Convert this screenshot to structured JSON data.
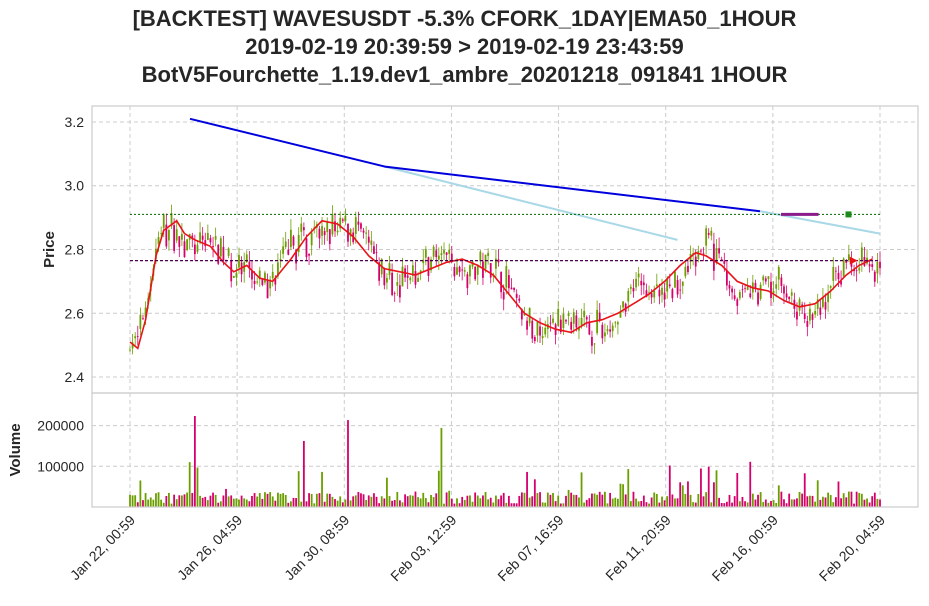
{
  "titles": {
    "line1": "[BACKTEST] WAVESUSDT -5.3% CFORK_1DAY|EMA50_1HOUR",
    "line2": "2019-02-19 20:39:59 > 2019-02-19 23:43:59",
    "line3": "BotV5Fourchette_1.19.dev1_ambre_20201218_091841 1HOUR"
  },
  "chart_data": {
    "type": "candlestick",
    "price_panel": {
      "ylabel": "Price",
      "ylim": [
        2.35,
        3.25
      ],
      "yticks": [
        "2.4",
        "2.6",
        "2.8",
        "3.0",
        "3.2"
      ],
      "ema_line": [
        [
          0,
          2.51
        ],
        [
          3,
          2.49
        ],
        [
          6,
          2.58
        ],
        [
          10,
          2.78
        ],
        [
          13,
          2.86
        ],
        [
          18,
          2.89
        ],
        [
          21,
          2.85
        ],
        [
          25,
          2.83
        ],
        [
          31,
          2.81
        ],
        [
          36,
          2.76
        ],
        [
          40,
          2.73
        ],
        [
          45,
          2.75
        ],
        [
          50,
          2.71
        ],
        [
          55,
          2.7
        ],
        [
          62,
          2.77
        ],
        [
          68,
          2.84
        ],
        [
          74,
          2.89
        ],
        [
          80,
          2.88
        ],
        [
          86,
          2.84
        ],
        [
          92,
          2.78
        ],
        [
          98,
          2.74
        ],
        [
          104,
          2.73
        ],
        [
          110,
          2.72
        ],
        [
          116,
          2.74
        ],
        [
          122,
          2.76
        ],
        [
          128,
          2.77
        ],
        [
          134,
          2.75
        ],
        [
          140,
          2.72
        ],
        [
          146,
          2.66
        ],
        [
          152,
          2.6
        ],
        [
          158,
          2.57
        ],
        [
          164,
          2.55
        ],
        [
          170,
          2.54
        ],
        [
          176,
          2.57
        ],
        [
          182,
          2.58
        ],
        [
          188,
          2.6
        ],
        [
          194,
          2.63
        ],
        [
          200,
          2.66
        ],
        [
          206,
          2.7
        ],
        [
          212,
          2.75
        ],
        [
          218,
          2.79
        ],
        [
          222,
          2.78
        ],
        [
          228,
          2.75
        ],
        [
          234,
          2.7
        ],
        [
          240,
          2.68
        ],
        [
          246,
          2.67
        ],
        [
          252,
          2.64
        ],
        [
          258,
          2.62
        ],
        [
          264,
          2.63
        ],
        [
          270,
          2.67
        ],
        [
          276,
          2.72
        ],
        [
          281,
          2.75
        ],
        [
          286,
          2.77
        ]
      ],
      "trend_upper": [
        [
          0.08,
          3.21
        ],
        [
          0.34,
          3.06
        ],
        [
          0.84,
          2.92
        ]
      ],
      "trend_lower": [
        [
          0.34,
          3.06
        ],
        [
          0.73,
          2.83
        ]
      ],
      "trend_lower2": [
        [
          0.84,
          2.92
        ],
        [
          1.0,
          2.85
        ]
      ],
      "hline_green": 2.91,
      "hline_purple": 2.765,
      "position_bar": {
        "from": 0.868,
        "to": 0.918,
        "price": 2.91
      }
    },
    "volume_panel": {
      "ylabel": "Volume",
      "ylim": [
        0,
        280000
      ],
      "yticks": [
        "100000",
        "200000"
      ]
    },
    "x_ticks": [
      "Jan 22, 00:59",
      "Jan 26, 04:59",
      "Jan 30, 08:59",
      "Feb 03, 12:59",
      "Feb 07, 16:59",
      "Feb 11, 20:59",
      "Feb 16, 00:59",
      "Feb 20, 04:59"
    ],
    "colors": {
      "up": "#6b9e00",
      "down": "#d6006b",
      "ema": "#e8141a",
      "trend_upper": "#0000dd",
      "trend_lower": "#a9d8e6",
      "hline_green": "#006400",
      "hline_purple": "#4b0050"
    }
  }
}
